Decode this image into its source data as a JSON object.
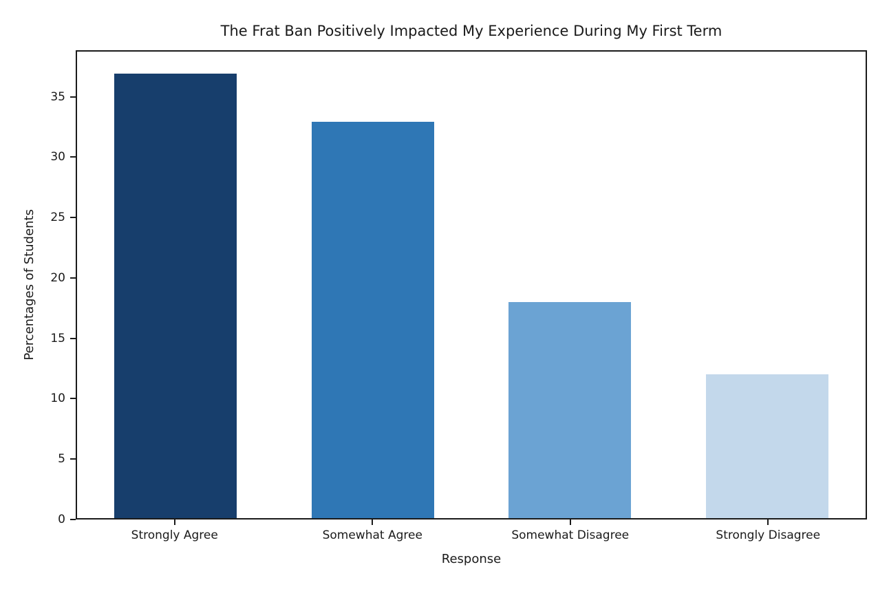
{
  "chart_data": {
    "type": "bar",
    "title": "The Frat Ban Positively Impacted My Experience During My First Term",
    "xlabel": "Response",
    "ylabel": "Percentages of Students",
    "categories": [
      "Strongly Agree",
      "Somewhat Agree",
      "Somewhat Disagree",
      "Strongly Disagree"
    ],
    "values": [
      37,
      33,
      18,
      12
    ],
    "bar_colors": [
      "#173e6c",
      "#2f77b5",
      "#6ba3d3",
      "#c3d8eb"
    ],
    "ylim": [
      0,
      38.85
    ],
    "yticks": [
      0,
      5,
      10,
      15,
      20,
      25,
      30,
      35
    ],
    "grid": false,
    "legend": "none",
    "axis_color": "#1a1a1a",
    "background_color": "#ffffff"
  }
}
